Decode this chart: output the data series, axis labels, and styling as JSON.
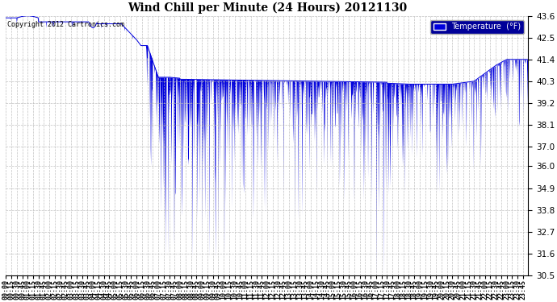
{
  "title": "Wind Chill per Minute (24 Hours) 20121130",
  "background_color": "#ffffff",
  "plot_bg_color": "#ffffff",
  "grid_color": "#bbbbbb",
  "line_color": "#0000dd",
  "ylim_min": 30.5,
  "ylim_max": 43.6,
  "yticks": [
    30.5,
    31.6,
    32.7,
    33.8,
    34.9,
    36.0,
    37.0,
    38.1,
    39.2,
    40.3,
    41.4,
    42.5,
    43.6
  ],
  "copyright_text": "Copyright 2012 Cartronics.com",
  "legend_label": "Temperature  (°F)",
  "legend_bg": "#000099",
  "total_minutes": 1440,
  "fig_width": 6.9,
  "fig_height": 3.75,
  "dpi": 100
}
